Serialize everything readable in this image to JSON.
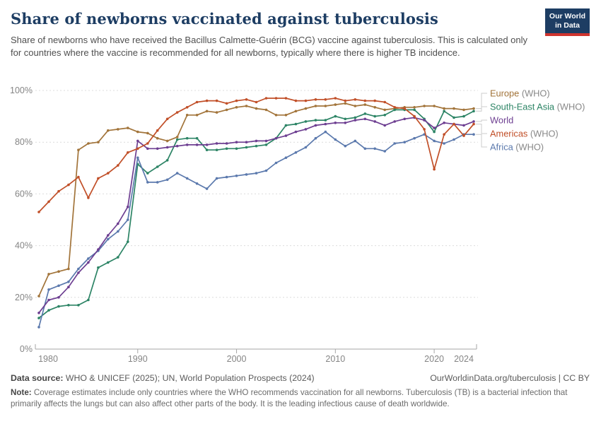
{
  "header": {
    "title": "Share of newborns vaccinated against tuberculosis",
    "subtitle": "Share of newborns who have received the Bacillus Calmette-Guérin (BCG) vaccine against tuberculosis. This is calculated only for countries where the vaccine is recommended for all newborns, typically where there is higher TB incidence.",
    "logo": {
      "line1": "Our World",
      "line2": "in Data",
      "bg_color": "#1d3d63",
      "stripe_color": "#cf342e"
    }
  },
  "chart_data": {
    "type": "line",
    "title": "Share of newborns vaccinated against tuberculosis",
    "xlabel": "",
    "ylabel": "",
    "xlim": [
      1980,
      2024
    ],
    "ylim": [
      0,
      100
    ],
    "grid": "dashed-horizontal",
    "legend_position": "right",
    "x_ticks": [
      1980,
      1990,
      2000,
      2010,
      2020,
      2024
    ],
    "y_ticks": [
      0,
      20,
      40,
      60,
      80,
      100
    ],
    "y_tick_suffix": "%",
    "x": [
      1980,
      1981,
      1982,
      1983,
      1984,
      1985,
      1986,
      1987,
      1988,
      1989,
      1990,
      1991,
      1992,
      1993,
      1994,
      1995,
      1996,
      1997,
      1998,
      1999,
      2000,
      2001,
      2002,
      2003,
      2004,
      2005,
      2006,
      2007,
      2008,
      2009,
      2010,
      2011,
      2012,
      2013,
      2014,
      2015,
      2016,
      2017,
      2018,
      2019,
      2020,
      2021,
      2022,
      2023,
      2024
    ],
    "series": [
      {
        "name": "Europe",
        "legend_suffix": " (WHO)",
        "color": "#A2743A",
        "values": [
          20.5,
          29,
          30,
          31,
          77,
          79.5,
          80,
          84.5,
          85,
          85.5,
          84,
          83.5,
          81.5,
          80.5,
          82,
          90.5,
          90.5,
          92,
          91.5,
          92.5,
          93.5,
          94,
          93,
          92.5,
          90.5,
          90.5,
          92,
          93,
          94,
          94,
          94.5,
          95,
          94,
          94.5,
          93.5,
          92.5,
          93,
          93.5,
          93.5,
          94,
          94,
          93,
          93,
          92.5,
          93
        ]
      },
      {
        "name": "South-East Asia",
        "legend_suffix": " (WHO)",
        "color": "#2C8465",
        "values": [
          12,
          15,
          16.5,
          17,
          17,
          19,
          31.5,
          33.5,
          35.5,
          41.5,
          71.5,
          68,
          70.5,
          73,
          81,
          81.5,
          81.5,
          77,
          77,
          77.5,
          77.5,
          78,
          78.5,
          79,
          81.5,
          86.5,
          87,
          88,
          88.5,
          88.5,
          90,
          89,
          89.5,
          91,
          90,
          90.5,
          92.5,
          92.5,
          92.5,
          89,
          84,
          92,
          89.5,
          90,
          92
        ]
      },
      {
        "name": "World",
        "legend_suffix": "",
        "color": "#6D3E91",
        "values": [
          14,
          19,
          20,
          24,
          29.5,
          33.5,
          38.5,
          44,
          48.5,
          55,
          80.5,
          77.5,
          77.5,
          78,
          78.5,
          79,
          79,
          79,
          79.5,
          79.5,
          80,
          80,
          80.5,
          80.5,
          81.5,
          82.5,
          84,
          85,
          86.5,
          87,
          87.5,
          87.5,
          88.5,
          89,
          88,
          86.5,
          88,
          89,
          89.5,
          88.5,
          85.5,
          87.5,
          87,
          86.5,
          88
        ]
      },
      {
        "name": "Americas",
        "legend_suffix": " (WHO)",
        "color": "#C14F28",
        "values": [
          53,
          57,
          61,
          63.5,
          66.5,
          58.5,
          66,
          68,
          71,
          76,
          77.5,
          79.5,
          84.5,
          89,
          91.5,
          93.5,
          95.5,
          96,
          96,
          95,
          96,
          96.5,
          95.5,
          97,
          97,
          97,
          96,
          96,
          96.5,
          96.5,
          97,
          96,
          96.5,
          96,
          96,
          95.5,
          93.5,
          93,
          90,
          85,
          69.5,
          83,
          87,
          82.5,
          87
        ]
      },
      {
        "name": "Africa",
        "legend_suffix": " (WHO)",
        "color": "#5B79AD",
        "values": [
          8.5,
          23,
          24.5,
          26,
          31,
          35,
          38,
          42.5,
          45.5,
          50,
          74,
          64.5,
          64.5,
          65.5,
          68,
          66,
          64,
          62,
          66,
          66.5,
          67,
          67.5,
          68,
          69,
          72,
          74,
          76,
          78,
          81.5,
          84,
          81,
          78.5,
          80.5,
          77.5,
          77.5,
          76.5,
          79.5,
          80,
          81.5,
          83,
          80.5,
          79.5,
          81,
          83,
          83
        ]
      }
    ],
    "style": {
      "gridline_color": "#dcdcdc",
      "axis_color": "#a6a6a6",
      "tick_label_color": "#858585",
      "legend_suffix_color": "#888888",
      "connector_color": "#cccccc"
    }
  },
  "footer": {
    "data_source_label": "Data source:",
    "data_source": "WHO & UNICEF (2025); UN, World Population Prospects (2024)",
    "citation": "OurWorldinData.org/tuberculosis | CC BY",
    "note_label": "Note:",
    "note": "Coverage estimates include only countries where the WHO recommends vaccination for all newborns. Tuberculosis (TB) is a bacterial infection that primarily affects the lungs but can also affect other parts of the body. It is the leading infectious cause of death worldwide."
  }
}
